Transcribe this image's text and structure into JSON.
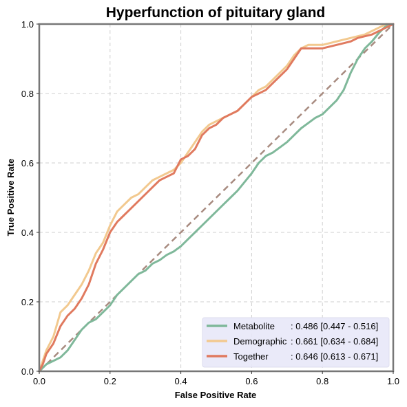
{
  "chart_data": {
    "type": "line",
    "title": "Hyperfunction of pituitary gland",
    "xlabel": "False Positive Rate",
    "ylabel": "True Positive Rate",
    "xlim": [
      0,
      1
    ],
    "ylim": [
      0,
      1
    ],
    "xticks": [
      "0.0",
      "0.2",
      "0.4",
      "0.6",
      "0.8",
      "1.0"
    ],
    "yticks": [
      "0.0",
      "0.2",
      "0.4",
      "0.6",
      "0.8",
      "1.0"
    ],
    "grid": true,
    "legend_position": "lower-right",
    "legend_background": "#e8e8f8",
    "diagonal": {
      "x": [
        0,
        1
      ],
      "y": [
        0,
        1
      ],
      "color": "#a88b80",
      "style": "dashed"
    },
    "series": [
      {
        "name": "Metabolite",
        "legend_name": "Metabolite",
        "legend_value": ": 0.486 [0.447 - 0.516]",
        "color": "#7fb89a",
        "x": [
          0,
          0.02,
          0.04,
          0.06,
          0.08,
          0.1,
          0.12,
          0.14,
          0.16,
          0.18,
          0.2,
          0.22,
          0.24,
          0.26,
          0.28,
          0.3,
          0.32,
          0.34,
          0.36,
          0.38,
          0.4,
          0.42,
          0.44,
          0.46,
          0.48,
          0.5,
          0.52,
          0.54,
          0.56,
          0.58,
          0.6,
          0.62,
          0.64,
          0.66,
          0.68,
          0.7,
          0.72,
          0.74,
          0.76,
          0.78,
          0.8,
          0.82,
          0.84,
          0.86,
          0.88,
          0.9,
          0.92,
          0.94,
          0.96,
          0.98,
          1.0
        ],
        "y": [
          0,
          0.02,
          0.03,
          0.04,
          0.06,
          0.09,
          0.12,
          0.14,
          0.15,
          0.17,
          0.19,
          0.22,
          0.24,
          0.26,
          0.28,
          0.29,
          0.31,
          0.32,
          0.335,
          0.345,
          0.36,
          0.38,
          0.4,
          0.42,
          0.44,
          0.46,
          0.48,
          0.5,
          0.52,
          0.545,
          0.57,
          0.6,
          0.62,
          0.63,
          0.645,
          0.66,
          0.68,
          0.7,
          0.715,
          0.73,
          0.74,
          0.76,
          0.78,
          0.81,
          0.86,
          0.9,
          0.93,
          0.95,
          0.975,
          0.995,
          1.0
        ]
      },
      {
        "name": "Demographic",
        "legend_name": "Demographic",
        "legend_value": ": 0.661 [0.634 - 0.684]",
        "color": "#f2c98f",
        "x": [
          0,
          0.01,
          0.02,
          0.04,
          0.06,
          0.08,
          0.1,
          0.12,
          0.14,
          0.16,
          0.18,
          0.2,
          0.22,
          0.24,
          0.26,
          0.28,
          0.3,
          0.32,
          0.34,
          0.36,
          0.38,
          0.4,
          0.42,
          0.44,
          0.46,
          0.48,
          0.5,
          0.52,
          0.54,
          0.56,
          0.58,
          0.6,
          0.62,
          0.64,
          0.66,
          0.68,
          0.7,
          0.72,
          0.74,
          0.76,
          0.78,
          0.8,
          0.82,
          0.84,
          0.86,
          0.88,
          0.9,
          0.92,
          0.94,
          0.96,
          0.98,
          1.0
        ],
        "y": [
          0,
          0.03,
          0.06,
          0.1,
          0.17,
          0.19,
          0.22,
          0.25,
          0.29,
          0.34,
          0.37,
          0.42,
          0.46,
          0.48,
          0.5,
          0.51,
          0.53,
          0.55,
          0.56,
          0.57,
          0.58,
          0.6,
          0.63,
          0.66,
          0.69,
          0.71,
          0.72,
          0.73,
          0.74,
          0.75,
          0.77,
          0.79,
          0.81,
          0.82,
          0.84,
          0.86,
          0.88,
          0.91,
          0.93,
          0.94,
          0.94,
          0.94,
          0.945,
          0.95,
          0.955,
          0.96,
          0.965,
          0.97,
          0.98,
          0.99,
          1.0,
          1.0
        ]
      },
      {
        "name": "Together",
        "legend_name": "Together",
        "legend_value": ": 0.646 [0.613 - 0.671]",
        "color": "#e07a5f",
        "x": [
          0,
          0.01,
          0.02,
          0.04,
          0.06,
          0.08,
          0.1,
          0.12,
          0.14,
          0.16,
          0.18,
          0.2,
          0.22,
          0.24,
          0.26,
          0.28,
          0.3,
          0.32,
          0.34,
          0.36,
          0.38,
          0.4,
          0.42,
          0.44,
          0.46,
          0.48,
          0.5,
          0.52,
          0.54,
          0.56,
          0.58,
          0.6,
          0.62,
          0.64,
          0.66,
          0.68,
          0.7,
          0.72,
          0.74,
          0.76,
          0.78,
          0.8,
          0.82,
          0.84,
          0.86,
          0.88,
          0.9,
          0.92,
          0.94,
          0.96,
          0.98,
          1.0
        ],
        "y": [
          0,
          0.02,
          0.05,
          0.08,
          0.13,
          0.16,
          0.18,
          0.21,
          0.25,
          0.31,
          0.35,
          0.4,
          0.43,
          0.45,
          0.47,
          0.49,
          0.51,
          0.53,
          0.55,
          0.56,
          0.57,
          0.61,
          0.62,
          0.64,
          0.68,
          0.7,
          0.71,
          0.73,
          0.74,
          0.75,
          0.77,
          0.79,
          0.8,
          0.81,
          0.83,
          0.85,
          0.87,
          0.9,
          0.93,
          0.93,
          0.93,
          0.93,
          0.935,
          0.94,
          0.945,
          0.95,
          0.96,
          0.965,
          0.97,
          0.98,
          0.99,
          1.0
        ]
      }
    ]
  }
}
